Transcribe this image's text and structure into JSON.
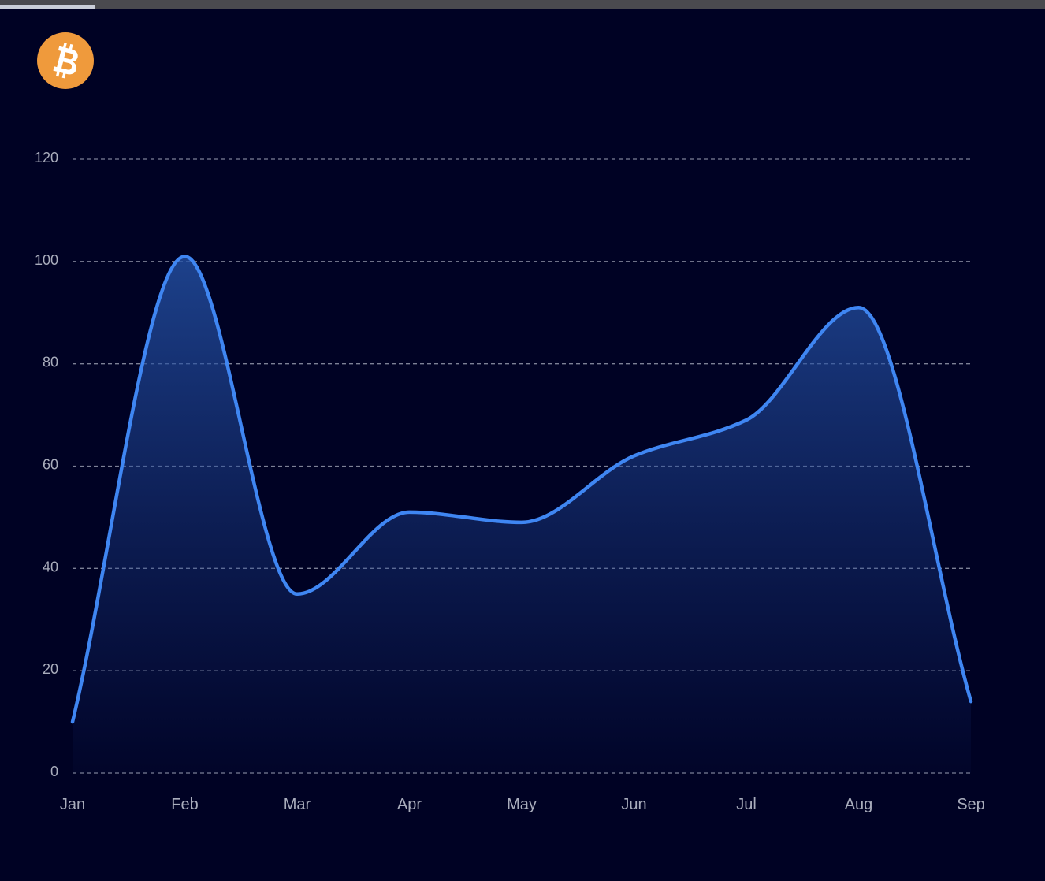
{
  "logo": {
    "icon": "bitcoin-icon",
    "color": "#ef9a3c"
  },
  "colors": {
    "background": "#000224",
    "line": "#3f86f2",
    "grid": "#7d8196",
    "tick_text": "#a9adbc"
  },
  "chart_data": {
    "type": "area",
    "title": "",
    "xlabel": "",
    "ylabel": "",
    "categories": [
      "Jan",
      "Feb",
      "Mar",
      "Apr",
      "May",
      "Jun",
      "Jul",
      "Aug",
      "Sep"
    ],
    "series": [
      {
        "values": [
          10,
          101,
          35,
          51,
          49,
          62,
          69,
          91,
          14
        ]
      }
    ],
    "ylim": [
      0,
      120
    ],
    "yticks": [
      "0",
      "20",
      "40",
      "60",
      "80",
      "100",
      "120"
    ],
    "grid": "horizontal-dashed",
    "legend": "none",
    "curve": "smooth"
  }
}
